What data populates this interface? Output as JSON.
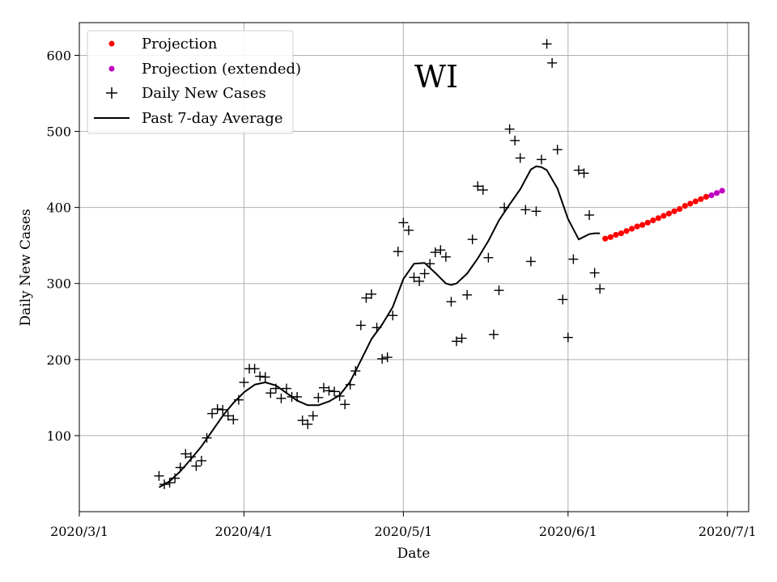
{
  "chart_data": {
    "type": "scatter",
    "title": "WI",
    "xlabel": "Date",
    "ylabel": "Daily New Cases",
    "x_tick_labels": [
      "2020/3/1",
      "2020/4/1",
      "2020/5/1",
      "2020/6/1",
      "2020/7/1"
    ],
    "x_tick_dates": [
      "2020-03-01",
      "2020-04-01",
      "2020-05-01",
      "2020-06-01",
      "2020-07-01"
    ],
    "y_ticks": [
      100,
      200,
      300,
      400,
      500,
      600
    ],
    "xlim": [
      "2020-03-01",
      "2020-07-05"
    ],
    "ylim": [
      0,
      643
    ],
    "grid": true,
    "legend_position": "top-left",
    "series": [
      {
        "name": "Projection",
        "marker": "dot",
        "color": "#ff0000",
        "points": [
          [
            "2020-06-08",
            359
          ],
          [
            "2020-06-09",
            361
          ],
          [
            "2020-06-10",
            364
          ],
          [
            "2020-06-11",
            366
          ],
          [
            "2020-06-12",
            369
          ],
          [
            "2020-06-13",
            372
          ],
          [
            "2020-06-14",
            375
          ],
          [
            "2020-06-15",
            377
          ],
          [
            "2020-06-16",
            380
          ],
          [
            "2020-06-17",
            383
          ],
          [
            "2020-06-18",
            386
          ],
          [
            "2020-06-19",
            389
          ],
          [
            "2020-06-20",
            392
          ],
          [
            "2020-06-21",
            395
          ],
          [
            "2020-06-22",
            398
          ],
          [
            "2020-06-23",
            402
          ],
          [
            "2020-06-24",
            405
          ],
          [
            "2020-06-25",
            408
          ],
          [
            "2020-06-26",
            411
          ],
          [
            "2020-06-27",
            414
          ]
        ]
      },
      {
        "name": "Projection (extended)",
        "marker": "dot",
        "color": "#bf00bf",
        "points": [
          [
            "2020-06-28",
            416
          ],
          [
            "2020-06-29",
            419
          ],
          [
            "2020-06-30",
            422
          ]
        ]
      },
      {
        "name": "Daily New Cases",
        "marker": "plus",
        "color": "#000000",
        "points": [
          [
            "2020-03-16",
            47
          ],
          [
            "2020-03-17",
            36
          ],
          [
            "2020-03-18",
            38
          ],
          [
            "2020-03-19",
            44
          ],
          [
            "2020-03-20",
            58
          ],
          [
            "2020-03-21",
            76
          ],
          [
            "2020-03-22",
            72
          ],
          [
            "2020-03-23",
            60
          ],
          [
            "2020-03-24",
            67
          ],
          [
            "2020-03-25",
            97
          ],
          [
            "2020-03-26",
            129
          ],
          [
            "2020-03-27",
            135
          ],
          [
            "2020-03-28",
            134
          ],
          [
            "2020-03-29",
            126
          ],
          [
            "2020-03-30",
            121
          ],
          [
            "2020-03-31",
            147
          ],
          [
            "2020-04-01",
            170
          ],
          [
            "2020-04-02",
            188
          ],
          [
            "2020-04-03",
            188
          ],
          [
            "2020-04-04",
            178
          ],
          [
            "2020-04-05",
            177
          ],
          [
            "2020-04-06",
            156
          ],
          [
            "2020-04-07",
            162
          ],
          [
            "2020-04-08",
            149
          ],
          [
            "2020-04-09",
            162
          ],
          [
            "2020-04-10",
            151
          ],
          [
            "2020-04-11",
            151
          ],
          [
            "2020-04-12",
            120
          ],
          [
            "2020-04-13",
            115
          ],
          [
            "2020-04-14",
            126
          ],
          [
            "2020-04-15",
            150
          ],
          [
            "2020-04-16",
            163
          ],
          [
            "2020-04-17",
            159
          ],
          [
            "2020-04-18",
            158
          ],
          [
            "2020-04-19",
            152
          ],
          [
            "2020-04-20",
            141
          ],
          [
            "2020-04-21",
            167
          ],
          [
            "2020-04-22",
            185
          ],
          [
            "2020-04-23",
            245
          ],
          [
            "2020-04-24",
            281
          ],
          [
            "2020-04-25",
            286
          ],
          [
            "2020-04-26",
            242
          ],
          [
            "2020-04-27",
            201
          ],
          [
            "2020-04-28",
            203
          ],
          [
            "2020-04-29",
            258
          ],
          [
            "2020-04-30",
            342
          ],
          [
            "2020-05-01",
            380
          ],
          [
            "2020-05-02",
            370
          ],
          [
            "2020-05-03",
            308
          ],
          [
            "2020-05-04",
            303
          ],
          [
            "2020-05-05",
            313
          ],
          [
            "2020-05-06",
            326
          ],
          [
            "2020-05-07",
            341
          ],
          [
            "2020-05-08",
            344
          ],
          [
            "2020-05-09",
            335
          ],
          [
            "2020-05-10",
            276
          ],
          [
            "2020-05-11",
            224
          ],
          [
            "2020-05-12",
            228
          ],
          [
            "2020-05-13",
            285
          ],
          [
            "2020-05-14",
            358
          ],
          [
            "2020-05-15",
            428
          ],
          [
            "2020-05-16",
            423
          ],
          [
            "2020-05-17",
            334
          ],
          [
            "2020-05-18",
            233
          ],
          [
            "2020-05-19",
            291
          ],
          [
            "2020-05-20",
            400
          ],
          [
            "2020-05-21",
            503
          ],
          [
            "2020-05-22",
            488
          ],
          [
            "2020-05-23",
            465
          ],
          [
            "2020-05-24",
            397
          ],
          [
            "2020-05-25",
            329
          ],
          [
            "2020-05-26",
            395
          ],
          [
            "2020-05-27",
            463
          ],
          [
            "2020-05-28",
            615
          ],
          [
            "2020-05-29",
            590
          ],
          [
            "2020-05-30",
            476
          ],
          [
            "2020-05-31",
            279
          ],
          [
            "2020-06-01",
            229
          ],
          [
            "2020-06-02",
            332
          ],
          [
            "2020-06-03",
            449
          ],
          [
            "2020-06-04",
            445
          ],
          [
            "2020-06-05",
            390
          ],
          [
            "2020-06-06",
            314
          ],
          [
            "2020-06-07",
            293
          ]
        ]
      },
      {
        "name": "Past 7-day Average",
        "marker": "line",
        "color": "#000000",
        "points": [
          [
            "2020-03-16",
            32
          ],
          [
            "2020-03-18",
            40
          ],
          [
            "2020-03-20",
            53
          ],
          [
            "2020-03-22",
            69
          ],
          [
            "2020-03-24",
            86
          ],
          [
            "2020-03-26",
            106
          ],
          [
            "2020-03-28",
            126
          ],
          [
            "2020-03-30",
            143
          ],
          [
            "2020-04-01",
            157
          ],
          [
            "2020-04-03",
            167
          ],
          [
            "2020-04-05",
            170
          ],
          [
            "2020-04-07",
            166
          ],
          [
            "2020-04-09",
            156
          ],
          [
            "2020-04-11",
            146
          ],
          [
            "2020-04-13",
            140
          ],
          [
            "2020-04-15",
            140
          ],
          [
            "2020-04-17",
            145
          ],
          [
            "2020-04-19",
            153
          ],
          [
            "2020-04-21",
            171
          ],
          [
            "2020-04-23",
            199
          ],
          [
            "2020-04-25",
            227
          ],
          [
            "2020-04-27",
            246
          ],
          [
            "2020-04-29",
            269
          ],
          [
            "2020-05-01",
            306
          ],
          [
            "2020-05-03",
            326
          ],
          [
            "2020-05-05",
            327
          ],
          [
            "2020-05-07",
            314
          ],
          [
            "2020-05-09",
            300
          ],
          [
            "2020-05-10",
            298
          ],
          [
            "2020-05-11",
            300
          ],
          [
            "2020-05-13",
            313
          ],
          [
            "2020-05-15",
            333
          ],
          [
            "2020-05-17",
            356
          ],
          [
            "2020-05-19",
            383
          ],
          [
            "2020-05-21",
            404
          ],
          [
            "2020-05-23",
            424
          ],
          [
            "2020-05-25",
            450
          ],
          [
            "2020-05-26",
            454
          ],
          [
            "2020-05-27",
            453
          ],
          [
            "2020-05-28",
            449
          ],
          [
            "2020-05-30",
            425
          ],
          [
            "2020-06-01",
            385
          ],
          [
            "2020-06-03",
            358
          ],
          [
            "2020-06-05",
            365
          ],
          [
            "2020-06-06",
            366
          ],
          [
            "2020-06-07",
            366
          ]
        ]
      }
    ]
  }
}
